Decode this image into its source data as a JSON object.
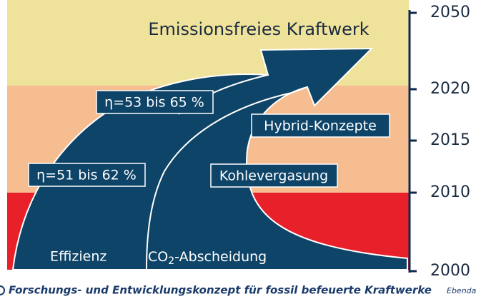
{
  "title": "Emissionsfreies Kraftwerk",
  "boxes": [
    "η=53 bis 65 %",
    "Hybrid-Konzepte",
    "η=51 bis 62 %",
    "Kohlevergasung"
  ],
  "arrow_labels": {
    "efficiency": "Effizienz",
    "capture": {
      "base": "CO",
      "sub": "2",
      "rest": "-Abscheidung"
    }
  },
  "axis": {
    "ticks": [
      "2050",
      "2020",
      "2015",
      "2010",
      "2000"
    ]
  },
  "caption": {
    "text": "Forschungs- und Entwicklungskonzept für fossil  befeuerte Kraftwerke",
    "source": "Ebenda"
  }
}
